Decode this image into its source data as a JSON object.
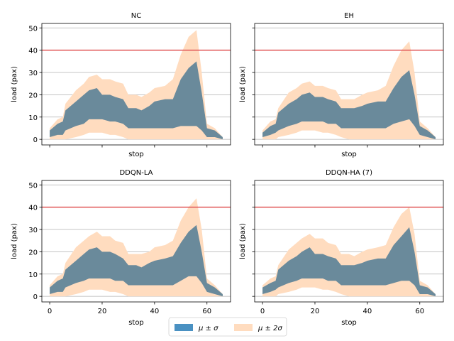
{
  "chart_data": [
    {
      "type": "area",
      "title": "NC",
      "xlabel": "stop",
      "ylabel": "load (pax)",
      "xlim": [
        -3,
        69
      ],
      "ylim": [
        -2.5,
        52
      ],
      "xticks": [
        0,
        20,
        40,
        60
      ],
      "yticks": [
        0,
        10,
        20,
        30,
        40,
        50
      ],
      "show_xticklabels": false,
      "show_yticklabels": true,
      "grid": "y",
      "threshold": 40,
      "x": [
        0,
        3,
        5,
        6,
        10,
        13,
        15,
        18,
        20,
        23,
        25,
        28,
        30,
        33,
        35,
        38,
        40,
        44,
        47,
        50,
        53,
        56,
        58,
        60,
        63,
        66
      ],
      "band_1sigma_upper": [
        4,
        7,
        8,
        13,
        17,
        20,
        22,
        23,
        20,
        20,
        19,
        18,
        14,
        14,
        13,
        15,
        17,
        18,
        18,
        27,
        32,
        35,
        21,
        5,
        4,
        1
      ],
      "band_1sigma_lower": [
        1,
        2,
        2,
        4,
        6,
        7,
        9,
        9,
        9,
        8,
        8,
        7,
        5,
        5,
        5,
        5,
        5,
        5,
        5,
        6,
        6,
        6,
        4,
        1,
        1,
        0
      ],
      "band_2sigma_upper": [
        5,
        9,
        10,
        16,
        22,
        25,
        28,
        29,
        27,
        27,
        26,
        25,
        20,
        20,
        19,
        21,
        23,
        24,
        27,
        38,
        46,
        49,
        30,
        7,
        5,
        1
      ],
      "band_2sigma_lower": [
        0,
        0,
        0,
        0,
        1,
        2,
        3,
        3,
        3,
        2,
        2,
        1,
        0,
        0,
        0,
        0,
        0,
        0,
        0,
        0,
        0,
        0,
        0,
        0,
        0,
        0
      ]
    },
    {
      "type": "area",
      "title": "EH",
      "xlabel": "stop",
      "ylabel": "load (pax)",
      "xlim": [
        -3,
        69
      ],
      "ylim": [
        -2.5,
        52
      ],
      "xticks": [
        0,
        20,
        40,
        60
      ],
      "yticks": [
        0,
        10,
        20,
        30,
        40,
        50
      ],
      "show_xticklabels": false,
      "show_yticklabels": false,
      "grid": "y",
      "threshold": 40,
      "x": [
        0,
        3,
        5,
        6,
        10,
        13,
        15,
        18,
        20,
        23,
        25,
        28,
        30,
        33,
        35,
        38,
        40,
        44,
        47,
        50,
        53,
        56,
        58,
        60,
        63,
        66
      ],
      "band_1sigma_upper": [
        3,
        6,
        7,
        12,
        16,
        18,
        20,
        21,
        19,
        19,
        18,
        17,
        14,
        14,
        14,
        15,
        16,
        17,
        17,
        23,
        28,
        31,
        20,
        6,
        4,
        1
      ],
      "band_1sigma_lower": [
        1,
        2,
        3,
        4,
        6,
        7,
        8,
        8,
        8,
        8,
        7,
        7,
        5,
        5,
        5,
        5,
        5,
        5,
        5,
        7,
        8,
        9,
        6,
        2,
        1,
        0
      ],
      "band_2sigma_upper": [
        4,
        8,
        9,
        14,
        21,
        23,
        25,
        26,
        24,
        24,
        23,
        22,
        18,
        18,
        18,
        20,
        21,
        22,
        24,
        33,
        40,
        44,
        30,
        8,
        5,
        1
      ],
      "band_2sigma_lower": [
        0,
        0,
        0,
        1,
        2,
        3,
        4,
        4,
        4,
        3,
        3,
        2,
        1,
        0,
        0,
        0,
        0,
        0,
        0,
        0,
        0,
        0,
        0,
        0,
        0,
        0
      ]
    },
    {
      "type": "area",
      "title": "DDQN-LA",
      "xlabel": "stop",
      "ylabel": "load (pax)",
      "xlim": [
        -3,
        69
      ],
      "ylim": [
        -2.5,
        52
      ],
      "xticks": [
        0,
        20,
        40,
        60
      ],
      "yticks": [
        0,
        10,
        20,
        30,
        40,
        50
      ],
      "show_xticklabels": true,
      "show_yticklabels": true,
      "grid": "y",
      "threshold": 40,
      "x": [
        0,
        3,
        5,
        6,
        10,
        13,
        15,
        18,
        20,
        23,
        25,
        28,
        30,
        33,
        35,
        38,
        40,
        44,
        47,
        50,
        53,
        56,
        58,
        60,
        63,
        66
      ],
      "band_1sigma_upper": [
        4,
        7,
        8,
        12,
        16,
        19,
        21,
        22,
        20,
        20,
        19,
        17,
        14,
        14,
        13,
        15,
        16,
        17,
        18,
        24,
        29,
        32,
        20,
        6,
        4,
        1
      ],
      "band_1sigma_lower": [
        1,
        2,
        2,
        4,
        6,
        7,
        8,
        8,
        8,
        8,
        7,
        7,
        5,
        5,
        5,
        5,
        5,
        5,
        5,
        7,
        9,
        9,
        6,
        2,
        1,
        0
      ],
      "band_2sigma_upper": [
        5,
        9,
        10,
        15,
        22,
        25,
        27,
        29,
        27,
        27,
        25,
        24,
        19,
        19,
        19,
        20,
        22,
        23,
        25,
        34,
        40,
        44,
        30,
        8,
        5,
        1
      ],
      "band_2sigma_lower": [
        0,
        0,
        0,
        0,
        1,
        2,
        3,
        3,
        3,
        2,
        2,
        1,
        0,
        0,
        0,
        0,
        0,
        0,
        0,
        0,
        0,
        0,
        0,
        0,
        0,
        0
      ]
    },
    {
      "type": "area",
      "title": "DDQN-HA (7)",
      "xlabel": "stop",
      "ylabel": "load (pax)",
      "xlim": [
        -3,
        69
      ],
      "ylim": [
        -2.5,
        52
      ],
      "xticks": [
        0,
        20,
        40,
        60
      ],
      "yticks": [
        0,
        10,
        20,
        30,
        40,
        50
      ],
      "show_xticklabels": true,
      "show_yticklabels": false,
      "grid": "y",
      "threshold": 40,
      "x": [
        0,
        3,
        5,
        6,
        10,
        13,
        15,
        18,
        20,
        23,
        25,
        28,
        30,
        33,
        35,
        38,
        40,
        44,
        47,
        50,
        53,
        56,
        58,
        60,
        63,
        66
      ],
      "band_1sigma_upper": [
        4,
        6,
        7,
        12,
        16,
        18,
        20,
        22,
        19,
        19,
        18,
        17,
        14,
        14,
        14,
        15,
        16,
        17,
        17,
        23,
        27,
        31,
        20,
        5,
        4,
        1
      ],
      "band_1sigma_lower": [
        1,
        2,
        3,
        4,
        6,
        7,
        8,
        8,
        8,
        8,
        7,
        7,
        5,
        5,
        5,
        5,
        5,
        5,
        5,
        6,
        7,
        7,
        5,
        1,
        1,
        0
      ],
      "band_2sigma_upper": [
        5,
        8,
        9,
        14,
        21,
        24,
        26,
        28,
        26,
        26,
        24,
        23,
        19,
        19,
        18,
        20,
        21,
        22,
        23,
        31,
        37,
        40,
        28,
        7,
        5,
        1
      ],
      "band_2sigma_lower": [
        0,
        0,
        0,
        1,
        2,
        3,
        4,
        4,
        4,
        3,
        3,
        2,
        1,
        0,
        0,
        0,
        0,
        0,
        0,
        0,
        0,
        0,
        0,
        0,
        0,
        0
      ]
    }
  ],
  "legend": {
    "placement": "bottom-center",
    "items": [
      {
        "label": "μ ± σ",
        "color": "#4a91c2"
      },
      {
        "label": "μ ± 2σ",
        "color": "#ffdcbf"
      }
    ]
  },
  "colors": {
    "band_2sigma": "#ffdcbf",
    "band_1sigma": "#4a91c2",
    "band_overlap": "#6a8a9b",
    "threshold": "#e05555",
    "grid": "#b0b0b0"
  }
}
